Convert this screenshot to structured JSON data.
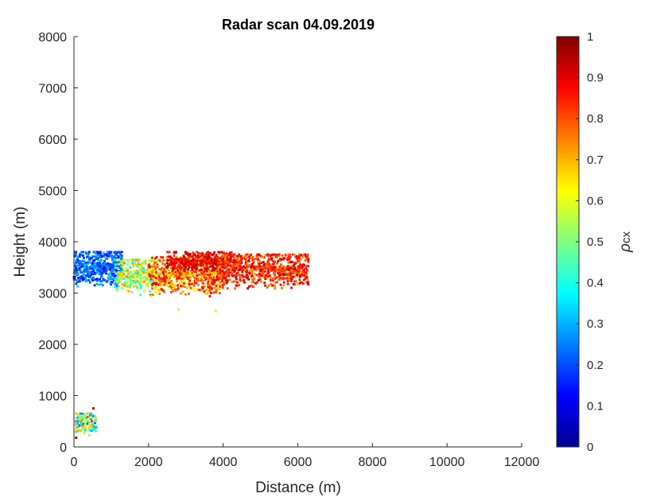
{
  "chart_data": {
    "type": "scatter",
    "title": "Radar scan 04.09.2019",
    "xlabel": "Distance (m)",
    "ylabel": "Height (m)",
    "xlim": [
      0,
      12000
    ],
    "ylim": [
      0,
      8000
    ],
    "xticks": [
      "0",
      "2000",
      "4000",
      "6000",
      "8000",
      "10000",
      "12000"
    ],
    "yticks": [
      "0",
      "1000",
      "2000",
      "3000",
      "4000",
      "5000",
      "6000",
      "7000",
      "8000"
    ],
    "grid": false,
    "colorbar": {
      "label": "ρcx",
      "range": [
        0,
        1
      ],
      "ticks": [
        "0",
        "0.1",
        "0.2",
        "0.3",
        "0.4",
        "0.5",
        "0.6",
        "0.7",
        "0.8",
        "0.9",
        "1"
      ],
      "colormap": "jet",
      "colors": [
        "#00008f",
        "#0000ff",
        "#0080ff",
        "#00ffff",
        "#80ff80",
        "#ffff00",
        "#ff8000",
        "#ff0000",
        "#800000"
      ]
    },
    "clusters": [
      {
        "x_range": [
          0,
          1300
        ],
        "y_range": [
          3000,
          3800
        ],
        "value_range": [
          0.12,
          0.32
        ],
        "count": 520
      },
      {
        "x_range": [
          1100,
          2200
        ],
        "y_range": [
          2850,
          3650
        ],
        "value_range": [
          0.35,
          0.75
        ],
        "count": 320
      },
      {
        "x_range": [
          2000,
          4000
        ],
        "y_range": [
          2800,
          3700
        ],
        "value_range": [
          0.6,
          0.92
        ],
        "count": 700
      },
      {
        "x_range": [
          2500,
          4300
        ],
        "y_range": [
          3300,
          3800
        ],
        "value_range": [
          0.82,
          0.97
        ],
        "count": 350
      },
      {
        "x_range": [
          3900,
          6300
        ],
        "y_range": [
          2950,
          3750
        ],
        "value_range": [
          0.72,
          0.95
        ],
        "count": 700
      },
      {
        "x_range": [
          50,
          600
        ],
        "y_range": [
          150,
          650
        ],
        "value_range": [
          0.2,
          0.75
        ],
        "count": 150
      }
    ],
    "outliers": [
      {
        "x": 520,
        "y": 750,
        "value": 0.95
      },
      {
        "x": 60,
        "y": 180,
        "value": 0.98
      },
      {
        "x": 2800,
        "y": 2680,
        "value": 0.55
      },
      {
        "x": 3800,
        "y": 2650,
        "value": 0.65
      }
    ]
  }
}
